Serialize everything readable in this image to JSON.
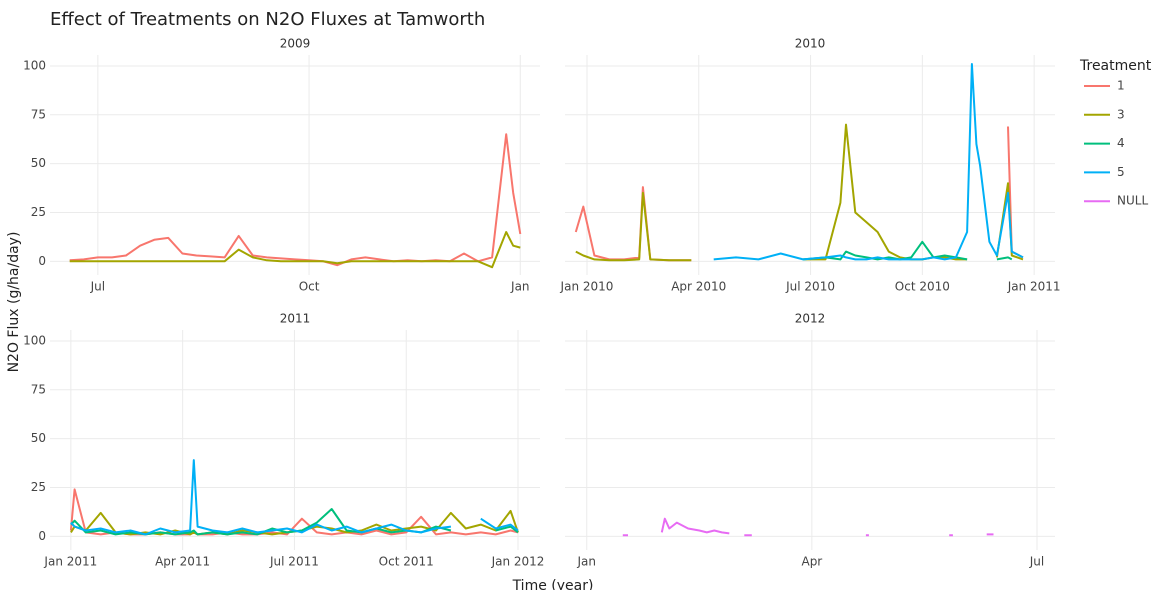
{
  "title": "Effect of Treatments on N2O Fluxes at Tamworth",
  "y_label": "N2O Flux (g/ha/day)",
  "x_label": "Time (year)",
  "legend": {
    "title": "Treatment",
    "items": [
      {
        "name": "1",
        "color": "#F8766D"
      },
      {
        "name": "3",
        "color": "#A3A500"
      },
      {
        "name": "4",
        "color": "#00BF7D"
      },
      {
        "name": "5",
        "color": "#00B0F6"
      },
      {
        "name": "NULL",
        "color": "#E76BF3"
      }
    ]
  },
  "chart_data": [
    {
      "type": "line",
      "title": "2009",
      "grid": true,
      "xlim": [
        6.32,
        13.28
      ],
      "xticks": [
        {
          "value": 7,
          "label": "Jul"
        },
        {
          "value": 10,
          "label": "Oct"
        },
        {
          "value": 13,
          "label": "Jan"
        }
      ],
      "ylim": [
        -7,
        105.6
      ],
      "yticks": [
        0,
        25,
        50,
        75,
        100
      ],
      "x": [
        6.6,
        6.8,
        7.0,
        7.2,
        7.4,
        7.6,
        7.8,
        8.0,
        8.2,
        8.4,
        8.6,
        8.8,
        9.0,
        9.2,
        9.4,
        9.6,
        9.8,
        10.0,
        10.2,
        10.4,
        10.6,
        10.8,
        11.0,
        11.2,
        11.4,
        11.6,
        11.8,
        12.0,
        12.2,
        12.4,
        12.6,
        12.8,
        12.9,
        13.0
      ],
      "series": [
        {
          "name": "1",
          "color": "#F8766D",
          "values": [
            0.5,
            1,
            2,
            2,
            3,
            8,
            11,
            12,
            4,
            3,
            2.5,
            2,
            13,
            3,
            2,
            1.5,
            1,
            0.5,
            0,
            -2,
            1,
            2,
            1,
            0,
            0.5,
            0,
            0.5,
            0,
            4,
            0,
            2,
            65,
            35,
            14
          ]
        },
        {
          "name": "3",
          "color": "#A3A500",
          "values": [
            0,
            0,
            0,
            0,
            0,
            0,
            0,
            0,
            0,
            0,
            0,
            0,
            6,
            2,
            0.5,
            0,
            0,
            0,
            0,
            -1,
            0,
            0,
            0,
            0,
            0,
            0,
            0,
            0,
            0,
            0,
            -3,
            15,
            8,
            7
          ]
        }
      ]
    },
    {
      "type": "line",
      "title": "2010",
      "grid": true,
      "xlim": [
        0.41,
        13.56
      ],
      "xticks": [
        {
          "value": 1,
          "label": "Jan 2010"
        },
        {
          "value": 4,
          "label": "Apr 2010"
        },
        {
          "value": 7,
          "label": "Jul 2010"
        },
        {
          "value": 10,
          "label": "Oct 2010"
        },
        {
          "value": 13,
          "label": "Jan 2011"
        }
      ],
      "ylim": [
        -7,
        105.6
      ],
      "yticks": [
        0,
        25,
        50,
        75,
        100
      ],
      "x": [
        0.7,
        0.9,
        1.2,
        1.6,
        2.0,
        2.4,
        2.5,
        2.7,
        3.2,
        3.8,
        4.4,
        5.0,
        5.6,
        6.2,
        6.8,
        7.4,
        7.8,
        7.95,
        8.2,
        8.5,
        8.8,
        9.1,
        9.4,
        9.7,
        10.0,
        10.3,
        10.6,
        10.9,
        11.2,
        11.33,
        11.45,
        11.55,
        11.8,
        12.0,
        12.3,
        12.4,
        12.7
      ],
      "series": [
        {
          "name": "1",
          "color": "#F8766D",
          "values": [
            15,
            28,
            3,
            1,
            1,
            2,
            38,
            1,
            0.5,
            0.5,
            null,
            null,
            null,
            1,
            null,
            null,
            40,
            null,
            null,
            2,
            null,
            null,
            null,
            1,
            null,
            1,
            null,
            null,
            null,
            null,
            null,
            null,
            null,
            null,
            69,
            5,
            2
          ]
        },
        {
          "name": "3",
          "color": "#A3A500",
          "values": [
            5,
            3,
            1,
            0.5,
            0.5,
            1,
            35,
            1,
            0.5,
            0.5,
            null,
            null,
            1,
            null,
            1,
            1,
            30,
            70,
            25,
            20,
            15,
            5,
            2,
            1,
            1,
            2,
            2,
            1,
            1,
            null,
            null,
            null,
            null,
            2,
            40,
            3,
            1
          ]
        },
        {
          "name": "4",
          "color": "#00BF7D",
          "values": [
            null,
            null,
            null,
            null,
            null,
            null,
            null,
            null,
            null,
            null,
            null,
            1,
            null,
            null,
            1,
            2,
            1,
            5,
            3,
            2,
            1,
            2,
            1,
            2,
            10,
            2,
            3,
            2,
            1,
            null,
            null,
            null,
            null,
            1,
            2,
            1,
            null
          ]
        },
        {
          "name": "5",
          "color": "#00B0F6",
          "values": [
            null,
            null,
            null,
            null,
            null,
            null,
            null,
            null,
            null,
            null,
            1,
            2,
            1,
            4,
            1,
            2,
            3,
            2,
            1,
            1,
            2,
            1,
            1,
            1,
            1,
            2,
            1,
            2,
            15,
            101,
            60,
            49,
            10,
            3,
            35,
            5,
            2
          ]
        }
      ]
    },
    {
      "type": "line",
      "title": "2011",
      "grid": true,
      "xlim": [
        0.44,
        13.59
      ],
      "xticks": [
        {
          "value": 1,
          "label": "Jan 2011"
        },
        {
          "value": 4,
          "label": "Apr 2011"
        },
        {
          "value": 7,
          "label": "Jul 2011"
        },
        {
          "value": 10,
          "label": "Oct 2011"
        },
        {
          "value": 13,
          "label": "Jan 2012"
        }
      ],
      "ylim": [
        -7,
        105.6
      ],
      "yticks": [
        0,
        25,
        50,
        75,
        100
      ],
      "x": [
        1.0,
        1.1,
        1.4,
        1.8,
        2.2,
        2.6,
        3.0,
        3.4,
        3.8,
        4.2,
        4.3,
        4.4,
        4.8,
        5.2,
        5.6,
        6.0,
        6.4,
        6.8,
        7.2,
        7.6,
        8.0,
        8.4,
        8.8,
        9.2,
        9.6,
        10.0,
        10.4,
        10.8,
        11.2,
        11.6,
        12.0,
        12.4,
        12.8,
        13.0
      ],
      "series": [
        {
          "name": "1",
          "color": "#F8766D",
          "values": [
            3,
            24,
            2,
            1,
            2,
            1,
            1,
            2,
            1,
            1,
            2,
            1,
            1,
            2,
            1,
            1,
            2,
            1,
            9,
            2,
            1,
            2,
            1,
            3,
            1,
            2,
            10,
            1,
            2,
            1,
            2,
            1,
            3,
            2
          ]
        },
        {
          "name": "3",
          "color": "#A3A500",
          "values": [
            2,
            5,
            3,
            12,
            2,
            1,
            2,
            1,
            3,
            1,
            2,
            1,
            2,
            1,
            3,
            2,
            1,
            2,
            3,
            5,
            4,
            2,
            3,
            6,
            3,
            4,
            5,
            3,
            12,
            4,
            6,
            3,
            13,
            2
          ]
        },
        {
          "name": "4",
          "color": "#00BF7D",
          "values": [
            6,
            8,
            2,
            3,
            1,
            2,
            1,
            2,
            1,
            2,
            3,
            1,
            2,
            1,
            2,
            1,
            4,
            2,
            3,
            7,
            14,
            3,
            2,
            4,
            2,
            3,
            2,
            5,
            3,
            null,
            null,
            3,
            5,
            2
          ]
        },
        {
          "name": "5",
          "color": "#00B0F6",
          "values": [
            7,
            5,
            3,
            4,
            2,
            3,
            1,
            4,
            2,
            3,
            39,
            5,
            3,
            2,
            4,
            2,
            3,
            4,
            2,
            6,
            3,
            5,
            2,
            4,
            6,
            3,
            2,
            4,
            5,
            null,
            9,
            4,
            6,
            3
          ]
        }
      ]
    },
    {
      "type": "line",
      "title": "2012",
      "grid": true,
      "xlim": [
        0.71,
        7.24
      ],
      "xticks": [
        {
          "value": 1,
          "label": "Jan"
        },
        {
          "value": 4,
          "label": "Apr"
        },
        {
          "value": 7,
          "label": "Jul"
        }
      ],
      "ylim": [
        -7,
        105.6
      ],
      "yticks": [
        0,
        25,
        50,
        75,
        100
      ],
      "x": [
        1.48,
        1.55,
        1.7,
        2.0,
        2.04,
        2.1,
        2.2,
        2.35,
        2.5,
        2.6,
        2.7,
        2.8,
        2.9,
        2.95,
        3.1,
        3.2,
        3.3,
        3.5,
        4.72,
        4.76,
        5.0,
        5.83,
        5.88,
        6.0,
        6.33,
        6.42
      ],
      "series": [
        {
          "name": "NULL",
          "color": "#E76BF3",
          "values": [
            0.5,
            0.5,
            null,
            2,
            9,
            4,
            7,
            4,
            3,
            2,
            3,
            2,
            1.5,
            null,
            0.5,
            0.5,
            null,
            null,
            0.5,
            0.5,
            null,
            0.5,
            0.5,
            null,
            1,
            1
          ]
        }
      ]
    }
  ]
}
